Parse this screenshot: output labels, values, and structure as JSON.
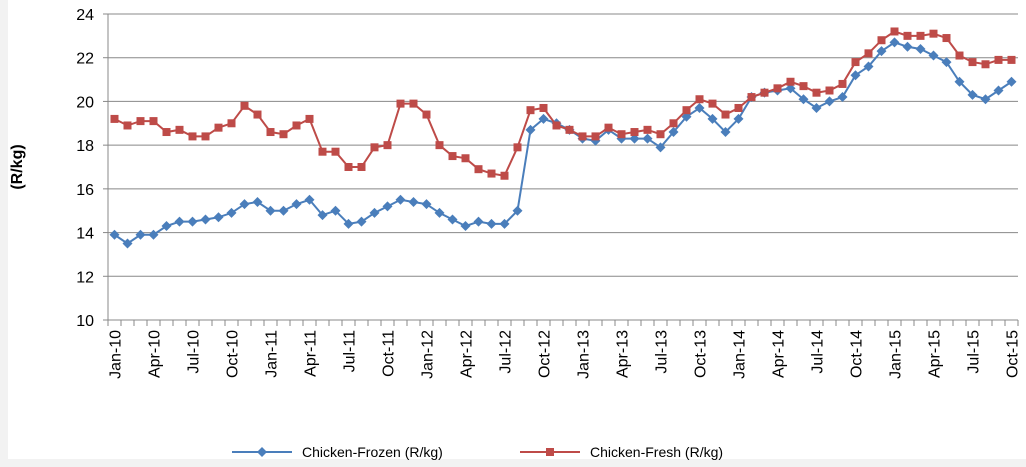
{
  "chart_data": {
    "type": "line",
    "y_label": "(R/kg)",
    "categories": [
      "Jan-10",
      null,
      null,
      "Apr-10",
      null,
      null,
      "Jul-10",
      null,
      null,
      "Oct-10",
      null,
      null,
      "Jan-11",
      null,
      null,
      "Apr-11",
      null,
      null,
      "Jul-11",
      null,
      null,
      "Oct-11",
      null,
      null,
      "Jan-12",
      null,
      null,
      "Apr-12",
      null,
      null,
      "Jul-12",
      null,
      null,
      "Oct-12",
      null,
      null,
      "Jan-13",
      null,
      null,
      "Apr-13",
      null,
      null,
      "Jul-13",
      null,
      null,
      "Oct-13",
      null,
      null,
      "Jan-14",
      null,
      null,
      "Apr-14",
      null,
      null,
      "Jul-14",
      null,
      null,
      "Oct-14",
      null,
      null,
      "Jan-15",
      null,
      null,
      "Apr-15",
      null,
      null,
      "Jul-15",
      null,
      null,
      "Oct-15"
    ],
    "series": [
      {
        "name": "Chicken-Frozen (R/kg)",
        "color": "#4a7ebb",
        "marker": "diamond",
        "values": [
          13.9,
          13.5,
          13.9,
          13.9,
          14.3,
          14.5,
          14.5,
          14.6,
          14.7,
          14.9,
          15.3,
          15.4,
          15.0,
          15.0,
          15.3,
          15.5,
          14.8,
          15.0,
          14.4,
          14.5,
          14.9,
          15.2,
          15.5,
          15.4,
          15.3,
          14.9,
          14.6,
          14.3,
          14.5,
          14.4,
          14.4,
          15.0,
          18.7,
          19.2,
          19.0,
          18.7,
          18.3,
          18.2,
          18.7,
          18.3,
          18.3,
          18.3,
          17.9,
          18.6,
          19.3,
          19.7,
          19.2,
          18.6,
          19.2,
          20.2,
          20.4,
          20.5,
          20.6,
          20.1,
          19.7,
          20.0,
          20.2,
          21.2,
          21.6,
          22.3,
          22.7,
          22.5,
          22.4,
          22.1,
          21.8,
          20.9,
          20.3,
          20.1,
          20.5,
          20.9
        ]
      },
      {
        "name": "Chicken-Fresh (R/kg)",
        "color": "#be4b48",
        "marker": "square",
        "values": [
          19.2,
          18.9,
          19.1,
          19.1,
          18.6,
          18.7,
          18.4,
          18.4,
          18.8,
          19.0,
          19.8,
          19.4,
          18.6,
          18.5,
          18.9,
          19.2,
          17.7,
          17.7,
          17.0,
          17.0,
          17.9,
          18.0,
          19.9,
          19.9,
          19.4,
          18.0,
          17.5,
          17.4,
          16.9,
          16.7,
          16.6,
          17.9,
          19.6,
          19.7,
          18.9,
          18.7,
          18.4,
          18.4,
          18.8,
          18.5,
          18.6,
          18.7,
          18.5,
          19.0,
          19.6,
          20.1,
          19.9,
          19.4,
          19.7,
          20.2,
          20.4,
          20.6,
          20.9,
          20.7,
          20.4,
          20.5,
          20.8,
          21.8,
          22.2,
          22.8,
          23.2,
          23.0,
          23.0,
          23.1,
          22.9,
          22.1,
          21.8,
          21.7,
          21.9,
          21.9
        ]
      }
    ],
    "ylim": [
      10,
      24
    ],
    "yticks": [
      10,
      12,
      14,
      16,
      18,
      20,
      22,
      24
    ],
    "grid": true,
    "legend": "bottom"
  }
}
